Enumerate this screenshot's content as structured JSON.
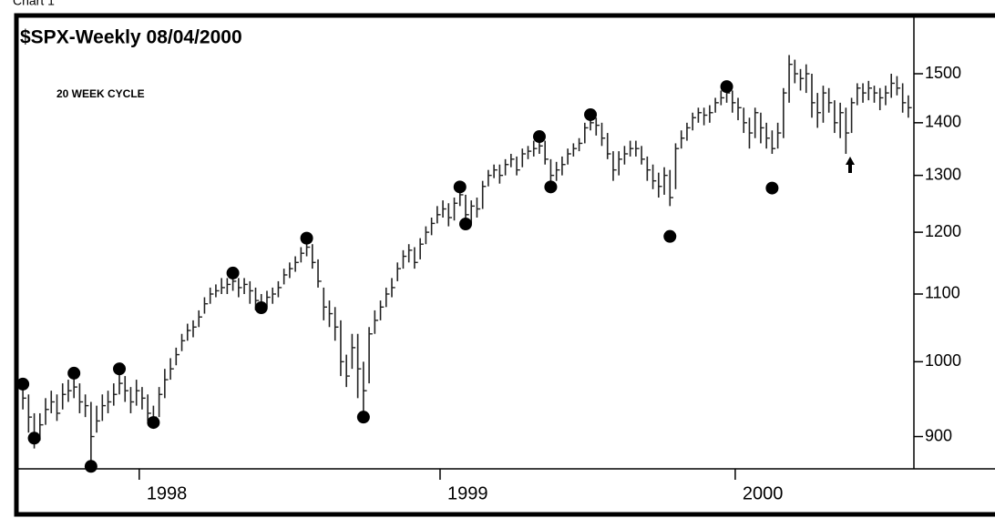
{
  "caption": "Chart 1",
  "chart_data": {
    "type": "ohlc",
    "title": "$SPX-Weekly  08/04/2000",
    "annotation": "20 WEEK CYCLE",
    "categories": [
      null,
      null,
      null,
      null,
      null,
      null,
      null,
      null,
      null,
      null,
      null,
      null,
      null,
      null,
      null,
      null,
      null,
      null,
      null,
      null,
      null,
      "1998",
      null,
      null,
      null,
      null,
      null,
      null,
      null,
      null,
      null,
      null,
      null,
      null,
      null,
      null,
      null,
      null,
      null,
      null,
      null,
      null,
      null,
      null,
      null,
      null,
      null,
      null,
      null,
      null,
      null,
      null,
      null,
      null,
      null,
      null,
      null,
      null,
      null,
      null,
      null,
      null,
      null,
      null,
      null,
      null,
      null,
      null,
      null,
      null,
      null,
      null,
      null,
      null,
      "1999",
      null,
      null,
      null,
      null,
      null,
      null,
      null,
      null,
      null,
      null,
      null,
      null,
      null,
      null,
      null,
      null,
      null,
      null,
      null,
      null,
      null,
      null,
      null,
      null,
      null,
      null,
      null,
      null,
      null,
      null,
      null,
      null,
      null,
      null,
      null,
      null,
      null,
      null,
      null,
      null,
      null,
      null,
      null,
      null,
      null,
      null,
      null,
      null,
      null,
      null,
      null,
      "2000",
      null,
      null,
      null,
      null,
      null,
      null,
      null,
      null,
      null,
      null,
      null,
      null,
      null,
      null,
      null,
      null,
      null,
      null,
      null,
      null,
      null,
      null,
      null,
      null,
      null,
      null,
      null,
      null,
      null,
      null
    ],
    "high": [
      965,
      955,
      930,
      930,
      950,
      960,
      955,
      970,
      975,
      980,
      970,
      955,
      945,
      940,
      955,
      960,
      970,
      985,
      980,
      965,
      975,
      965,
      955,
      940,
      965,
      990,
      1005,
      1020,
      1040,
      1055,
      1060,
      1075,
      1095,
      1110,
      1115,
      1125,
      1125,
      1130,
      1125,
      1125,
      1120,
      1110,
      1100,
      1105,
      1110,
      1120,
      1140,
      1150,
      1160,
      1175,
      1190,
      1180,
      1155,
      1110,
      1090,
      1080,
      1060,
      1010,
      1040,
      1040,
      1000,
      1050,
      1075,
      1090,
      1110,
      1125,
      1150,
      1170,
      1180,
      1175,
      1190,
      1210,
      1225,
      1245,
      1255,
      1250,
      1260,
      1280,
      1265,
      1255,
      1260,
      1290,
      1310,
      1320,
      1320,
      1330,
      1340,
      1335,
      1350,
      1355,
      1365,
      1370,
      1365,
      1330,
      1325,
      1335,
      1350,
      1360,
      1370,
      1400,
      1420,
      1410,
      1400,
      1380,
      1345,
      1345,
      1355,
      1365,
      1365,
      1355,
      1335,
      1320,
      1305,
      1315,
      1310,
      1360,
      1385,
      1400,
      1420,
      1430,
      1430,
      1435,
      1450,
      1465,
      1475,
      1465,
      1450,
      1430,
      1410,
      1430,
      1420,
      1400,
      1385,
      1400,
      1470,
      1540,
      1530,
      1510,
      1520,
      1500,
      1460,
      1475,
      1470,
      1445,
      1440,
      1430,
      1450,
      1480,
      1480,
      1485,
      1475,
      1470,
      1475,
      1500,
      1495,
      1480,
      1455
    ],
    "low": [
      935,
      905,
      885,
      895,
      915,
      930,
      920,
      935,
      945,
      950,
      930,
      925,
      860,
      905,
      920,
      930,
      940,
      955,
      945,
      930,
      940,
      935,
      920,
      912,
      925,
      950,
      975,
      995,
      1015,
      1030,
      1035,
      1050,
      1070,
      1085,
      1095,
      1100,
      1100,
      1105,
      1095,
      1100,
      1085,
      1075,
      1075,
      1080,
      1085,
      1095,
      1115,
      1125,
      1135,
      1150,
      1160,
      1140,
      1110,
      1060,
      1050,
      1030,
      980,
      965,
      990,
      950,
      930,
      970,
      1040,
      1060,
      1080,
      1095,
      1120,
      1140,
      1150,
      1140,
      1155,
      1180,
      1195,
      1215,
      1225,
      1210,
      1220,
      1245,
      1215,
      1215,
      1225,
      1240,
      1280,
      1295,
      1285,
      1300,
      1315,
      1300,
      1315,
      1330,
      1335,
      1340,
      1320,
      1285,
      1290,
      1300,
      1320,
      1335,
      1345,
      1360,
      1385,
      1375,
      1355,
      1330,
      1290,
      1300,
      1320,
      1335,
      1335,
      1320,
      1290,
      1275,
      1260,
      1265,
      1245,
      1275,
      1350,
      1365,
      1385,
      1400,
      1395,
      1400,
      1420,
      1435,
      1440,
      1420,
      1405,
      1380,
      1350,
      1370,
      1360,
      1350,
      1340,
      1350,
      1370,
      1440,
      1480,
      1465,
      1460,
      1410,
      1390,
      1400,
      1420,
      1380,
      1370,
      1340,
      1380,
      1435,
      1440,
      1445,
      1440,
      1425,
      1435,
      1450,
      1455,
      1420,
      1410
    ],
    "close": [
      950,
      925,
      900,
      915,
      935,
      945,
      930,
      955,
      960,
      965,
      945,
      940,
      900,
      920,
      940,
      945,
      955,
      970,
      960,
      945,
      960,
      950,
      930,
      925,
      955,
      975,
      990,
      1010,
      1030,
      1045,
      1050,
      1065,
      1085,
      1100,
      1105,
      1110,
      1115,
      1120,
      1110,
      1115,
      1105,
      1090,
      1085,
      1095,
      1100,
      1110,
      1130,
      1140,
      1150,
      1165,
      1175,
      1150,
      1120,
      1080,
      1070,
      1050,
      1000,
      980,
      1020,
      990,
      960,
      1040,
      1060,
      1080,
      1100,
      1110,
      1140,
      1160,
      1170,
      1150,
      1180,
      1200,
      1215,
      1230,
      1240,
      1225,
      1250,
      1265,
      1230,
      1245,
      1240,
      1280,
      1300,
      1310,
      1300,
      1320,
      1330,
      1310,
      1340,
      1345,
      1350,
      1355,
      1330,
      1300,
      1310,
      1320,
      1340,
      1350,
      1360,
      1390,
      1400,
      1395,
      1370,
      1340,
      1310,
      1330,
      1340,
      1350,
      1350,
      1330,
      1310,
      1290,
      1280,
      1300,
      1260,
      1350,
      1370,
      1390,
      1410,
      1420,
      1415,
      1420,
      1440,
      1450,
      1460,
      1440,
      1430,
      1400,
      1380,
      1420,
      1390,
      1370,
      1350,
      1380,
      1460,
      1520,
      1500,
      1490,
      1500,
      1440,
      1420,
      1460,
      1440,
      1400,
      1420,
      1380,
      1440,
      1470,
      1460,
      1470,
      1460,
      1450,
      1460,
      1480,
      1470,
      1440,
      1430
    ],
    "cycle_points": [
      969,
      null,
      898,
      null,
      null,
      null,
      null,
      null,
      null,
      984,
      null,
      null,
      863,
      null,
      null,
      null,
      null,
      990,
      null,
      null,
      null,
      null,
      null,
      918,
      null,
      null,
      null,
      null,
      null,
      null,
      null,
      null,
      null,
      null,
      null,
      null,
      null,
      1133,
      null,
      null,
      null,
      null,
      1079,
      null,
      null,
      null,
      null,
      null,
      null,
      null,
      1190,
      null,
      null,
      null,
      null,
      null,
      null,
      null,
      null,
      null,
      925,
      null,
      null,
      null,
      null,
      null,
      null,
      null,
      null,
      null,
      null,
      null,
      null,
      null,
      null,
      null,
      null,
      1279,
      1214,
      null,
      null,
      null,
      null,
      null,
      null,
      null,
      null,
      null,
      null,
      null,
      null,
      1373,
      null,
      1279,
      null,
      null,
      null,
      null,
      null,
      null,
      1416,
      null,
      null,
      null,
      null,
      null,
      null,
      null,
      null,
      null,
      null,
      null,
      null,
      null,
      1193,
      null,
      null,
      null,
      null,
      null,
      null,
      null,
      null,
      null,
      1473,
      null,
      null,
      null,
      null,
      null,
      null,
      null,
      1277,
      null,
      null,
      null,
      null,
      null,
      null,
      null,
      null,
      null,
      null,
      null,
      null,
      null,
      null,
      null,
      null,
      null,
      null,
      null,
      null,
      null,
      null,
      null,
      null
    ],
    "color": "#222222",
    "dot_color": "#000000",
    "log_scale": true,
    "ylim": [
      860,
      1585
    ],
    "yticks": [
      900,
      1000,
      1100,
      1200,
      1300,
      1400,
      1500
    ]
  }
}
